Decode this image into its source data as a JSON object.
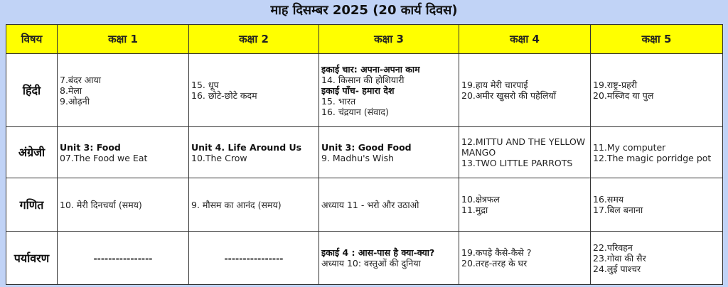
{
  "title": "माह दिसम्बर 2025 (20 कार्य दिवस)",
  "colors": {
    "background": "#c1d3f6",
    "header": "#ffff00"
  },
  "headers": [
    "विषय",
    "कक्षा 1",
    "कक्षा 2",
    "कक्षा 3",
    "कक्षा 4",
    "कक्षा 5"
  ],
  "rows": [
    {
      "subject": "हिंदी",
      "cells": [
        [
          {
            "t": "7.बंदर आया"
          },
          {
            "t": "8.मेला"
          },
          {
            "t": "9.ओढ़नी"
          }
        ],
        [
          {
            "t": "15. धूप"
          },
          {
            "t": "16. छोटे-छोटे कदम"
          }
        ],
        [
          {
            "t": "इकाई चार:  अपना-अपना काम",
            "b": true
          },
          {
            "t": "14. किसान की होशियारी"
          },
          {
            "t": "इकाई पाँच- हमारा देश",
            "b": true
          },
          {
            "t": "15. भारत"
          },
          {
            "t": "16. चंद्रयान (संवाद)"
          }
        ],
        [
          {
            "t": "19.हाय मेरी चारपाई"
          },
          {
            "t": "20.अमीर खुसरो की पहेलियाँ"
          }
        ],
        [
          {
            "t": "19.राष्ट्र-प्रहरी"
          },
          {
            "t": "20.मस्जिद या पुल"
          }
        ]
      ]
    },
    {
      "subject": "अंग्रेजी",
      "cells": [
        [
          {
            "t": "Unit 3: Food",
            "b": true
          },
          {
            "t": "07.The Food we Eat"
          }
        ],
        [
          {
            "t": "Unit 4. Life Around Us",
            "b": true
          },
          {
            "t": "10.The Crow"
          }
        ],
        [
          {
            "t": "Unit 3: Good Food",
            "b": true
          },
          {
            "t": "9. Madhu's Wish"
          }
        ],
        [
          {
            "t": "12.MITTU AND THE YELLOW"
          },
          {
            "t": "MANGO"
          },
          {
            "t": "13.TWO LITTLE PARROTS"
          }
        ],
        [
          {
            "t": "11.My computer"
          },
          {
            "t": "12.The magic porridge pot"
          }
        ]
      ]
    },
    {
      "subject": "गणित",
      "cells": [
        [
          {
            "t": "10. मेरी दिनचर्या (समय)"
          }
        ],
        [
          {
            "t": "9. मौसम का आनंद (समय)"
          }
        ],
        [
          {
            "t": "अध्याय 11 - भरो और उठाओ"
          }
        ],
        [
          {
            "t": "10.क्षेत्रफल"
          },
          {
            "t": "11.मुद्रा"
          }
        ],
        [
          {
            "t": "16.समय"
          },
          {
            "t": "17.बिल बनाना"
          }
        ]
      ]
    },
    {
      "subject": "पर्यावरण",
      "cells": [
        [
          {
            "t": "----------------",
            "dash": true
          }
        ],
        [
          {
            "t": "----------------",
            "dash": true
          }
        ],
        [
          {
            "t": "इकाई 4 : आस-पास है क्या-क्या?",
            "b": true
          },
          {
            "t": "अध्याय 10: वस्तुओं की दुनिया"
          }
        ],
        [
          {
            "t": "19.कपड़े कैसे-कैसे ?"
          },
          {
            "t": "20.तरह-तरह के घर"
          }
        ],
        [
          {
            "t": "22.परिवहन"
          },
          {
            "t": "23.गोवा की सैर"
          },
          {
            "t": "24.लुई पाश्चर"
          }
        ]
      ]
    }
  ]
}
